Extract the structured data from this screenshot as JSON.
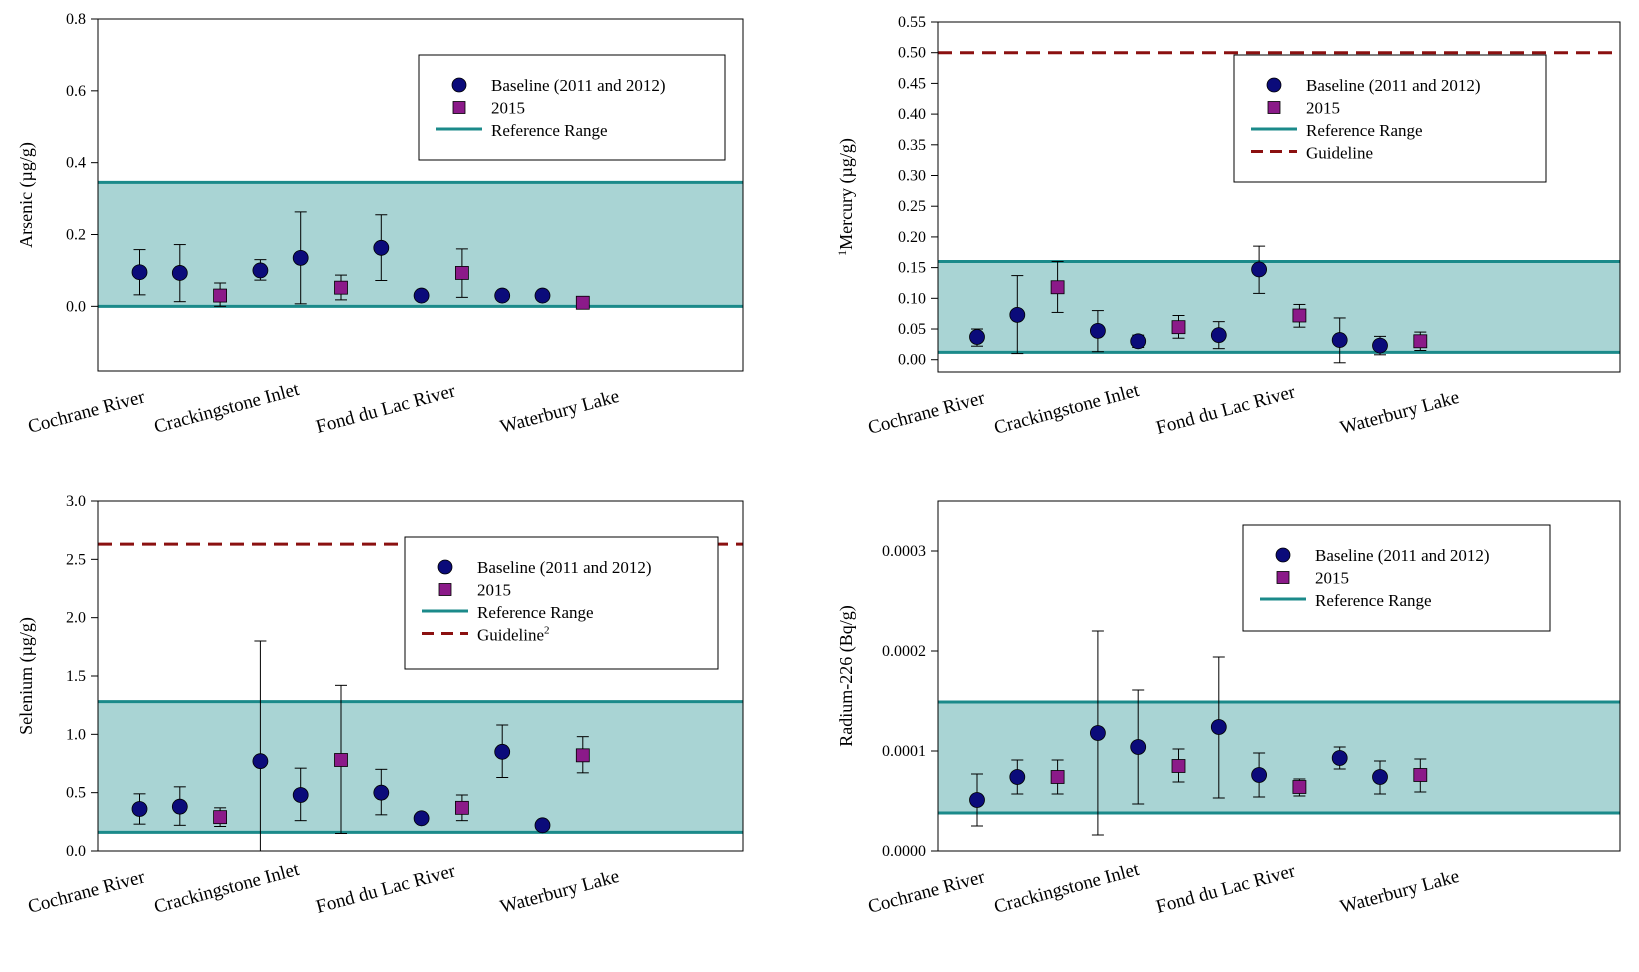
{
  "colors": {
    "baseline": "#0b0b7a",
    "y2015": "#8b1a89",
    "reference_line": "#1b8a8a",
    "reference_fill": "#a9d4d4",
    "guideline": "#8b1010"
  },
  "chart_data": [
    {
      "type": "scatter",
      "ylabel": "Arsenic (µg/g)",
      "ylabel_prefix": "",
      "ylim": [
        -0.18,
        0.8
      ],
      "yticks": [
        0.0,
        0.2,
        0.4,
        0.6,
        0.8
      ],
      "ytick_labels": [
        "0.0",
        "0.2",
        "0.4",
        "0.6",
        "0.8"
      ],
      "categories": [
        "Cochrane River",
        "Crackingstone Inlet",
        "Fond du Lac River",
        "Waterbury Lake"
      ],
      "reference_range": [
        0.0,
        0.345
      ],
      "guideline": null,
      "legend": {
        "position": "top-right",
        "entries": [
          {
            "label": "Baseline (2011 and 2012)",
            "sup": "",
            "kind": "circle"
          },
          {
            "label": "2015",
            "sup": "",
            "kind": "square"
          },
          {
            "label": "Reference Range",
            "sup": "",
            "kind": "line"
          }
        ]
      },
      "series": [
        {
          "name": "Baseline (2011 and 2012)",
          "marker": "circle",
          "points": [
            {
              "x": 1,
              "y": 0.095,
              "lo": 0.032,
              "hi": 0.158
            },
            {
              "x": 2,
              "y": 0.093,
              "lo": 0.013,
              "hi": 0.172
            },
            {
              "x": 4,
              "y": 0.1,
              "lo": 0.073,
              "hi": 0.13
            },
            {
              "x": 5,
              "y": 0.135,
              "lo": 0.007,
              "hi": 0.263
            },
            {
              "x": 7,
              "y": 0.163,
              "lo": 0.072,
              "hi": 0.255
            },
            {
              "x": 8,
              "y": 0.03,
              "lo": null,
              "hi": null
            },
            {
              "x": 10,
              "y": 0.03,
              "lo": null,
              "hi": null
            },
            {
              "x": 11,
              "y": 0.03,
              "lo": null,
              "hi": null
            }
          ]
        },
        {
          "name": "2015",
          "marker": "square",
          "points": [
            {
              "x": 3,
              "y": 0.03,
              "lo": 0.0,
              "hi": 0.065
            },
            {
              "x": 6,
              "y": 0.052,
              "lo": 0.018,
              "hi": 0.087
            },
            {
              "x": 9,
              "y": 0.093,
              "lo": 0.025,
              "hi": 0.16
            },
            {
              "x": 12,
              "y": 0.01,
              "lo": null,
              "hi": null
            }
          ]
        }
      ]
    },
    {
      "type": "scatter",
      "ylabel": "Mercury (µg/g)",
      "ylabel_prefix": "1",
      "ylim": [
        -0.02,
        0.55
      ],
      "yticks": [
        0.0,
        0.05,
        0.1,
        0.15,
        0.2,
        0.25,
        0.3,
        0.35,
        0.4,
        0.45,
        0.5,
        0.55
      ],
      "ytick_labels": [
        "0.00",
        "0.05",
        "0.10",
        "0.15",
        "0.20",
        "0.25",
        "0.30",
        "0.35",
        "0.40",
        "0.45",
        "0.50",
        "0.55"
      ],
      "categories": [
        "Cochrane River",
        "Crackingstone Inlet",
        "Fond du Lac River",
        "Waterbury Lake"
      ],
      "reference_range": [
        0.012,
        0.16
      ],
      "guideline": 0.5,
      "legend": {
        "position": "top-right",
        "entries": [
          {
            "label": "Baseline (2011 and 2012)",
            "sup": "",
            "kind": "circle"
          },
          {
            "label": "2015",
            "sup": "",
            "kind": "square"
          },
          {
            "label": "Reference Range",
            "sup": "",
            "kind": "line"
          },
          {
            "label": "Guideline",
            "sup": "",
            "kind": "dash"
          }
        ]
      },
      "series": [
        {
          "name": "Baseline (2011 and 2012)",
          "marker": "circle",
          "points": [
            {
              "x": 1,
              "y": 0.037,
              "lo": 0.022,
              "hi": 0.05
            },
            {
              "x": 2,
              "y": 0.073,
              "lo": 0.01,
              "hi": 0.137
            },
            {
              "x": 4,
              "y": 0.047,
              "lo": 0.013,
              "hi": 0.08
            },
            {
              "x": 5,
              "y": 0.03,
              "lo": 0.02,
              "hi": 0.04
            },
            {
              "x": 7,
              "y": 0.04,
              "lo": 0.018,
              "hi": 0.062
            },
            {
              "x": 8,
              "y": 0.147,
              "lo": 0.108,
              "hi": 0.185
            },
            {
              "x": 10,
              "y": 0.032,
              "lo": -0.005,
              "hi": 0.068
            },
            {
              "x": 11,
              "y": 0.023,
              "lo": 0.008,
              "hi": 0.038
            }
          ]
        },
        {
          "name": "2015",
          "marker": "square",
          "points": [
            {
              "x": 3,
              "y": 0.118,
              "lo": 0.077,
              "hi": 0.16
            },
            {
              "x": 6,
              "y": 0.053,
              "lo": 0.035,
              "hi": 0.072
            },
            {
              "x": 9,
              "y": 0.072,
              "lo": 0.053,
              "hi": 0.09
            },
            {
              "x": 12,
              "y": 0.03,
              "lo": 0.015,
              "hi": 0.045
            }
          ]
        }
      ]
    },
    {
      "type": "scatter",
      "ylabel": "Selenium (µg/g)",
      "ylabel_prefix": "",
      "ylim": [
        0.0,
        3.0
      ],
      "yticks": [
        0.0,
        0.5,
        1.0,
        1.5,
        2.0,
        2.5,
        3.0
      ],
      "ytick_labels": [
        "0.0",
        "0.5",
        "1.0",
        "1.5",
        "2.0",
        "2.5",
        "3.0"
      ],
      "categories": [
        "Cochrane River",
        "Crackingstone Inlet",
        "Fond du Lac River",
        "Waterbury Lake"
      ],
      "reference_range": [
        0.16,
        1.28
      ],
      "guideline": 2.63,
      "legend": {
        "position": "top-right",
        "entries": [
          {
            "label": "Baseline (2011 and 2012)",
            "sup": "",
            "kind": "circle"
          },
          {
            "label": "2015",
            "sup": "",
            "kind": "square"
          },
          {
            "label": "Reference Range",
            "sup": "",
            "kind": "line"
          },
          {
            "label": "Guideline",
            "sup": "2",
            "kind": "dash"
          }
        ]
      },
      "series": [
        {
          "name": "Baseline (2011 and 2012)",
          "marker": "circle",
          "points": [
            {
              "x": 1,
              "y": 0.36,
              "lo": 0.23,
              "hi": 0.49
            },
            {
              "x": 2,
              "y": 0.38,
              "lo": 0.22,
              "hi": 0.55
            },
            {
              "x": 4,
              "y": 0.77,
              "lo": 0.0,
              "hi": 1.8
            },
            {
              "x": 5,
              "y": 0.48,
              "lo": 0.26,
              "hi": 0.71
            },
            {
              "x": 7,
              "y": 0.5,
              "lo": 0.31,
              "hi": 0.7
            },
            {
              "x": 8,
              "y": 0.28,
              "lo": null,
              "hi": null
            },
            {
              "x": 10,
              "y": 0.85,
              "lo": 0.63,
              "hi": 1.08
            },
            {
              "x": 11,
              "y": 0.22,
              "lo": null,
              "hi": null
            }
          ]
        },
        {
          "name": "2015",
          "marker": "square",
          "points": [
            {
              "x": 3,
              "y": 0.29,
              "lo": 0.21,
              "hi": 0.37
            },
            {
              "x": 6,
              "y": 0.78,
              "lo": 0.15,
              "hi": 1.42
            },
            {
              "x": 9,
              "y": 0.37,
              "lo": 0.26,
              "hi": 0.48
            },
            {
              "x": 12,
              "y": 0.82,
              "lo": 0.67,
              "hi": 0.98
            }
          ]
        }
      ]
    },
    {
      "type": "scatter",
      "ylabel": "Radium-226 (Bq/g)",
      "ylabel_prefix": "",
      "ylim": [
        0.0,
        0.00035
      ],
      "yticks": [
        0.0,
        0.0001,
        0.0002,
        0.0003
      ],
      "ytick_labels": [
        "0.0000",
        "0.0001",
        "0.0002",
        "0.0003"
      ],
      "categories": [
        "Cochrane River",
        "Crackingstone Inlet",
        "Fond du Lac River",
        "Waterbury Lake"
      ],
      "reference_range": [
        3.8e-05,
        0.000149
      ],
      "guideline": null,
      "legend": {
        "position": "top-right",
        "entries": [
          {
            "label": "Baseline (2011 and 2012)",
            "sup": "",
            "kind": "circle"
          },
          {
            "label": "2015",
            "sup": "",
            "kind": "square"
          },
          {
            "label": "Reference Range",
            "sup": "",
            "kind": "line"
          }
        ]
      },
      "series": [
        {
          "name": "Baseline (2011 and 2012)",
          "marker": "circle",
          "points": [
            {
              "x": 1,
              "y": 5.1e-05,
              "lo": 2.5e-05,
              "hi": 7.7e-05
            },
            {
              "x": 2,
              "y": 7.4e-05,
              "lo": 5.7e-05,
              "hi": 9.1e-05
            },
            {
              "x": 4,
              "y": 0.000118,
              "lo": 1.6e-05,
              "hi": 0.00022
            },
            {
              "x": 5,
              "y": 0.000104,
              "lo": 4.7e-05,
              "hi": 0.000161
            },
            {
              "x": 7,
              "y": 0.000124,
              "lo": 5.3e-05,
              "hi": 0.000194
            },
            {
              "x": 8,
              "y": 7.6e-05,
              "lo": 5.4e-05,
              "hi": 9.8e-05
            },
            {
              "x": 10,
              "y": 9.3e-05,
              "lo": 8.2e-05,
              "hi": 0.000104
            },
            {
              "x": 11,
              "y": 7.4e-05,
              "lo": 5.7e-05,
              "hi": 9e-05
            }
          ]
        },
        {
          "name": "2015",
          "marker": "square",
          "points": [
            {
              "x": 3,
              "y": 7.4e-05,
              "lo": 5.7e-05,
              "hi": 9.1e-05
            },
            {
              "x": 6,
              "y": 8.5e-05,
              "lo": 6.9e-05,
              "hi": 0.000102
            },
            {
              "x": 9,
              "y": 6.4e-05,
              "lo": 5.5e-05,
              "hi": 7.2e-05
            },
            {
              "x": 12,
              "y": 7.6e-05,
              "lo": 5.9e-05,
              "hi": 9.2e-05
            }
          ]
        }
      ]
    }
  ]
}
